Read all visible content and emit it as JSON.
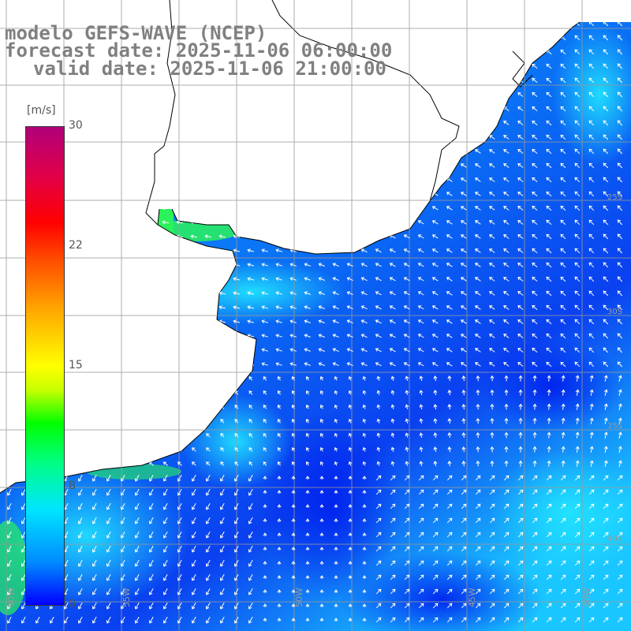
{
  "title": {
    "model": "modelo GEFS-WAVE (NCEP)",
    "forecast": "forecast date: 2025-11-06 06:00:00",
    "valid": "valid date: 2025-11-06 21:00:00"
  },
  "colorbar": {
    "unit": "[m/s]",
    "ticks": [
      "30",
      "22",
      "15",
      "8",
      "0"
    ]
  },
  "axes": {
    "lon_labels": [
      "60W",
      "55W",
      "50W",
      "45W",
      "40W"
    ],
    "lat_labels": [
      "40S",
      "35S",
      "30S",
      "25S"
    ]
  },
  "chart_data": {
    "type": "heatmap",
    "variable": "wind speed",
    "unit": "m/s",
    "color_range": [
      0,
      30
    ],
    "colorbar_ticks": [
      30,
      22,
      15,
      8,
      0
    ],
    "colors": {
      "ocean_blue": "#0a64f0",
      "ocean_cyan": "#1ee6ff",
      "coastal_green": "#2af25a",
      "land": "#ffffff",
      "grid": "#999999",
      "title": "#808080"
    }
  }
}
